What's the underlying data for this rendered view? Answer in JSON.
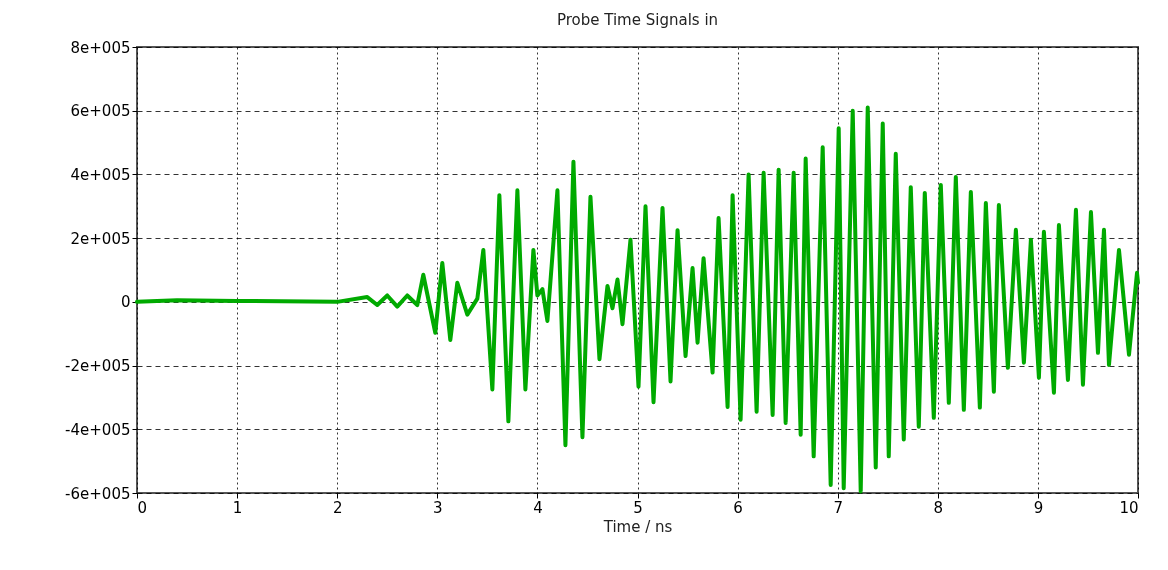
{
  "chart_data": {
    "type": "line",
    "title": "Probe Time Signals in",
    "xlabel": "Time / ns",
    "xlim": [
      0,
      10
    ],
    "xticks": [
      0,
      1,
      2,
      3,
      4,
      5,
      6,
      7,
      8,
      9,
      10
    ],
    "ylim": [
      -600000,
      800000
    ],
    "yticks": [
      {
        "value": -600000,
        "label": "-6e+005"
      },
      {
        "value": -400000,
        "label": "-4e+005"
      },
      {
        "value": -200000,
        "label": "-2e+005"
      },
      0,
      {
        "value": 200000,
        "label": "2e+005"
      },
      {
        "value": 400000,
        "label": "4e+005"
      },
      {
        "value": 600000,
        "label": "6e+005"
      },
      {
        "value": 800000,
        "label": "8e+005"
      }
    ],
    "grid": true,
    "line_style": "solid",
    "series": [
      {
        "color": "#00aa00",
        "x": [
          0,
          0.4,
          1,
          2,
          2.3,
          2.4,
          2.5,
          2.6,
          2.7,
          2.8,
          2.86,
          2.98,
          3.05,
          3.13,
          3.2,
          3.3,
          3.4,
          3.46,
          3.55,
          3.62,
          3.71,
          3.8,
          3.88,
          3.96,
          4.0,
          4.05,
          4.1,
          4.2,
          4.28,
          4.36,
          4.45,
          4.53,
          4.62,
          4.7,
          4.75,
          4.8,
          4.85,
          4.93,
          5.01,
          5.08,
          5.16,
          5.25,
          5.33,
          5.4,
          5.48,
          5.55,
          5.6,
          5.66,
          5.75,
          5.81,
          5.9,
          5.95,
          6.03,
          6.11,
          6.19,
          6.26,
          6.35,
          6.41,
          6.48,
          6.56,
          6.63,
          6.68,
          6.76,
          6.85,
          6.93,
          7.01,
          7.06,
          7.15,
          7.23,
          7.3,
          7.38,
          7.45,
          7.51,
          7.58,
          7.66,
          7.73,
          7.81,
          7.87,
          7.96,
          8.03,
          8.11,
          8.18,
          8.26,
          8.33,
          8.42,
          8.48,
          8.56,
          8.61,
          8.7,
          8.78,
          8.86,
          8.93,
          9.01,
          9.06,
          9.16,
          9.21,
          9.3,
          9.38,
          9.45,
          9.53,
          9.6,
          9.66,
          9.71,
          9.81,
          9.91,
          9.99,
          10
        ],
        "values": [
          0,
          5000,
          3000,
          0,
          15000,
          -10000,
          20000,
          -15000,
          20000,
          -10000,
          85000,
          -97000,
          122000,
          -120000,
          60000,
          -40000,
          10000,
          163000,
          -275000,
          335000,
          -375000,
          350000,
          -275000,
          163000,
          20000,
          40000,
          -60000,
          350000,
          -450000,
          440000,
          -425000,
          330000,
          -180000,
          50000,
          -20000,
          70000,
          -70000,
          195000,
          -266000,
          300000,
          -315000,
          295000,
          -250000,
          225000,
          -170000,
          106000,
          -128000,
          137000,
          -222000,
          263000,
          -330000,
          335000,
          -370000,
          400000,
          -345000,
          405000,
          -355000,
          415000,
          -380000,
          405000,
          -417000,
          450000,
          -485000,
          485000,
          -575000,
          545000,
          -585000,
          600000,
          -595000,
          610000,
          -520000,
          560000,
          -485000,
          465000,
          -432000,
          360000,
          -392000,
          342000,
          -364000,
          367000,
          -317000,
          392000,
          -339000,
          345000,
          -332000,
          310000,
          -282000,
          304000,
          -207000,
          226000,
          -191000,
          195000,
          -238000,
          220000,
          -285000,
          241000,
          -245000,
          289000,
          -260000,
          282000,
          -160000,
          226000,
          -198000,
          163000,
          -166000,
          91000,
          60000
        ]
      }
    ]
  }
}
